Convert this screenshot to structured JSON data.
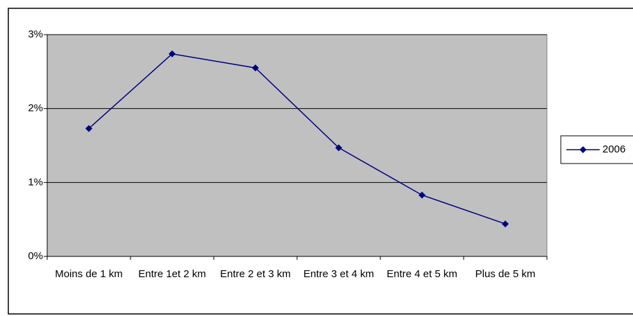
{
  "chart_data": {
    "type": "line",
    "categories": [
      "Moins de 1 km",
      "Entre 1et 2 km",
      "Entre 2 et 3 km",
      "Entre 3 et 4 km",
      "Entre 4 et 5 km",
      "Plus de 5 km"
    ],
    "series": [
      {
        "name": "2006",
        "color": "#000080",
        "values": [
          1.73,
          2.74,
          2.55,
          1.47,
          0.83,
          0.44
        ]
      }
    ],
    "ylim": [
      0,
      3
    ],
    "yticks": [
      {
        "value": 0,
        "label": "0%"
      },
      {
        "value": 1,
        "label": "1%"
      },
      {
        "value": 2,
        "label": "2%"
      },
      {
        "value": 3,
        "label": "3%"
      }
    ],
    "grid": true,
    "legend": "right",
    "plot_background": "#c0c0c0"
  }
}
